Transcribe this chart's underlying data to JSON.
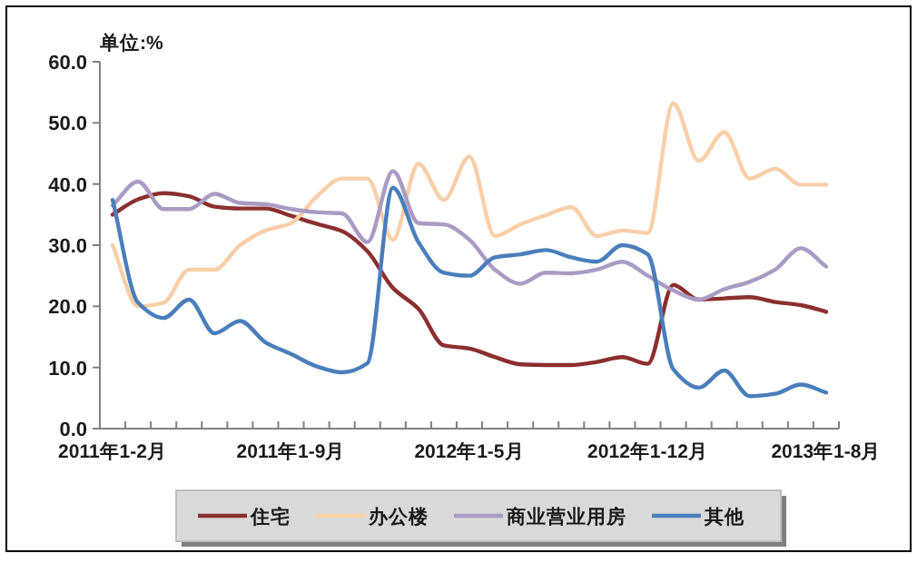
{
  "chart_data": {
    "type": "line",
    "ylabel": "单位:%",
    "legend": "bottom",
    "categories": [
      "2011年1-2月",
      null,
      null,
      null,
      null,
      null,
      null,
      "2011年1-9月",
      null,
      null,
      null,
      null,
      null,
      null,
      "2012年1-5月",
      null,
      null,
      null,
      null,
      null,
      null,
      "2012年1-12月",
      null,
      null,
      null,
      null,
      null,
      null,
      "2013年1-8月"
    ],
    "ylim": [
      0,
      60
    ],
    "yticks": [
      {
        "value": 0,
        "label": "0.0"
      },
      {
        "value": 10,
        "label": "10.0"
      },
      {
        "value": 20,
        "label": "20.0"
      },
      {
        "value": 30,
        "label": "30.0"
      },
      {
        "value": 40,
        "label": "40.0"
      },
      {
        "value": 50,
        "label": "50.0"
      },
      {
        "value": 60,
        "label": "60.0"
      }
    ],
    "series": [
      {
        "name": "住宅",
        "color": "#8b2f2f",
        "values": [
          35,
          37.5,
          38.5,
          38,
          36.3,
          36,
          36,
          34.8,
          33.5,
          32.3,
          29,
          23,
          19.6,
          13.6,
          13.1,
          11.7,
          10.5,
          10.4,
          10.4,
          10.9,
          11.7,
          10.6,
          23.5,
          21.1,
          21.3,
          21.5,
          20.7,
          20.2,
          19.1
        ]
      },
      {
        "name": "办公楼",
        "color": "#f9cfa8",
        "values": [
          30,
          20,
          20.6,
          26,
          26,
          30,
          32.4,
          33.6,
          37.9,
          40.9,
          40.9,
          30.9,
          43.3,
          37.4,
          44.5,
          31.5,
          33.4,
          34.9,
          36.2,
          31.5,
          32.4,
          32,
          53.2,
          43.8,
          48.5,
          40.9,
          42.5,
          39.9,
          39.9
        ]
      },
      {
        "name": "商业营业用房",
        "color": "#a99bc4",
        "values": [
          36.5,
          40.4,
          35.9,
          35.9,
          38.4,
          36.9,
          36.7,
          35.9,
          35.4,
          35.2,
          30.5,
          42.1,
          33.6,
          33.4,
          30.9,
          26,
          23.7,
          25.5,
          25.4,
          26,
          27.3,
          25,
          22.6,
          21.1,
          22.8,
          24,
          26,
          29.5,
          26.5
        ]
      },
      {
        "name": "其他",
        "color": "#4a7ebb",
        "values": [
          37.4,
          20.6,
          18.1,
          21.1,
          15.6,
          17.6,
          14.1,
          12.2,
          10.2,
          9.2,
          10.7,
          39.4,
          30.5,
          25.5,
          25,
          28,
          28.5,
          29.2,
          28,
          27.3,
          30,
          28.5,
          9.7,
          6.7,
          9.5,
          5.3,
          5.7,
          7.2,
          5.9
        ]
      }
    ]
  }
}
